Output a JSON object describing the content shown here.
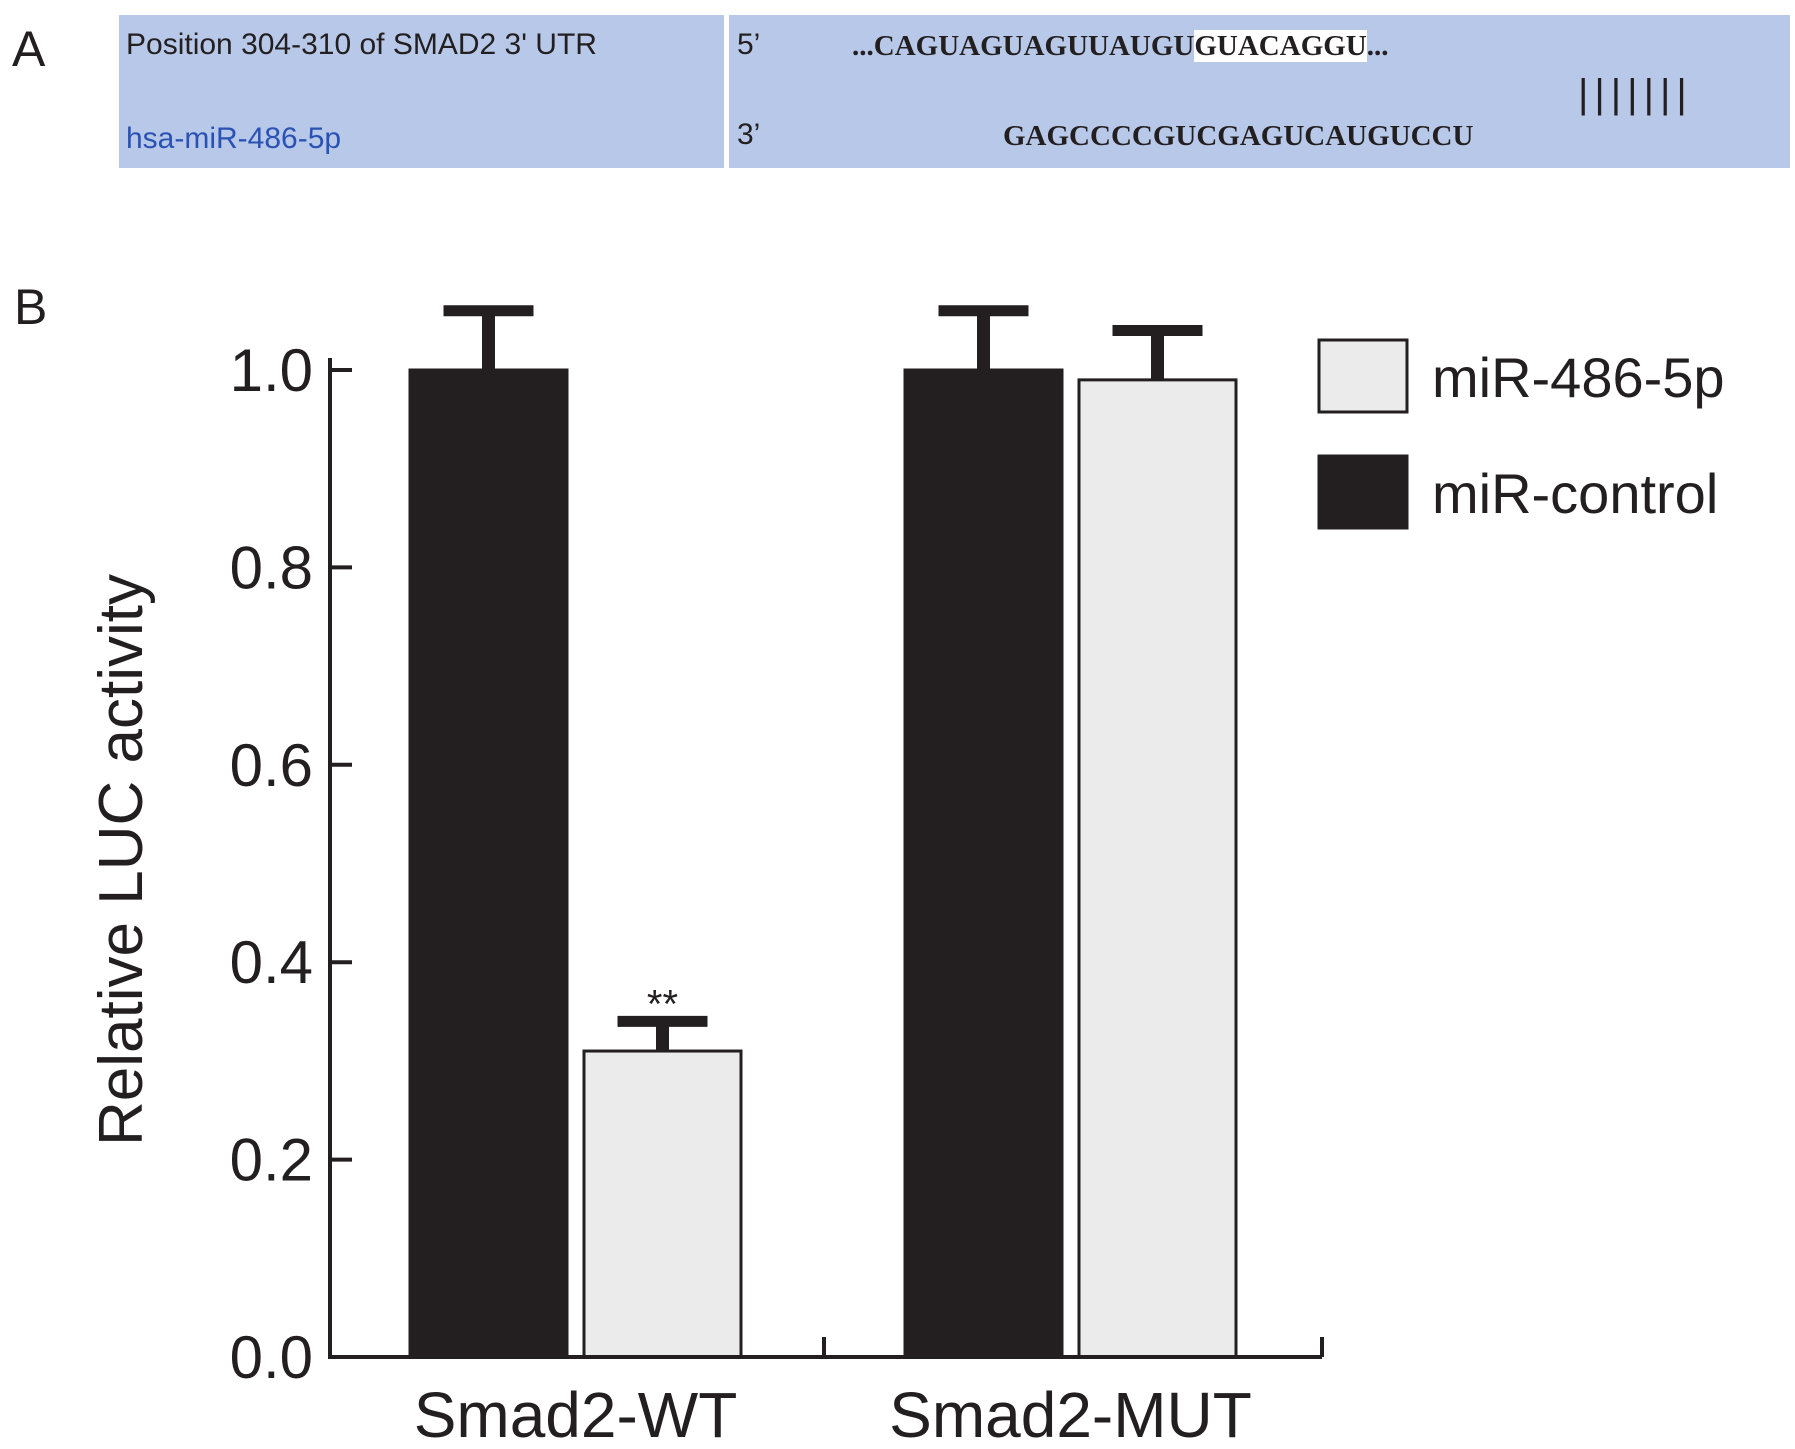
{
  "panel_a": {
    "label": "A",
    "utr_name": "Position 304-310 of SMAD2 3' UTR",
    "mirna_name": "hsa-miR-486-5p",
    "utr_end": "5’",
    "mirna_end": "3’",
    "utr_sequence_prefix": "...CAGUAGUAGUUAUGU",
    "utr_sequence_seed": "GUACAGGU",
    "utr_sequence_suffix": "...",
    "mirna_sequence": "GAGCCCCGUCGAGUCAUGUCCU",
    "pairing_marks": "|||||||",
    "box_color": "#b7c8e8",
    "mirna_name_color": "#2a52b5"
  },
  "panel_b": {
    "label": "B"
  },
  "chart_data": {
    "type": "bar",
    "title": "",
    "xlabel": "",
    "ylabel": "Relative LUC activity",
    "ylim": [
      0,
      1.0
    ],
    "yticks": [
      "0.0",
      "0.2",
      "0.4",
      "0.6",
      "0.8",
      "1.0"
    ],
    "categories": [
      "Smad2-WT",
      "Smad2-MUT"
    ],
    "series": [
      {
        "name": "miR-control",
        "color": "#231f20",
        "values": [
          1.0,
          1.0
        ],
        "errors": [
          0.06,
          0.06
        ]
      },
      {
        "name": "miR-486-5p",
        "color": "#ebebeb",
        "values": [
          0.31,
          0.99
        ],
        "errors": [
          0.03,
          0.05
        ]
      }
    ],
    "annotations": [
      {
        "category": "Smad2-WT",
        "series": "miR-486-5p",
        "text": "**"
      }
    ],
    "legend_placement": "top-right",
    "legend_order": [
      "miR-486-5p",
      "miR-control"
    ],
    "grid": false
  }
}
